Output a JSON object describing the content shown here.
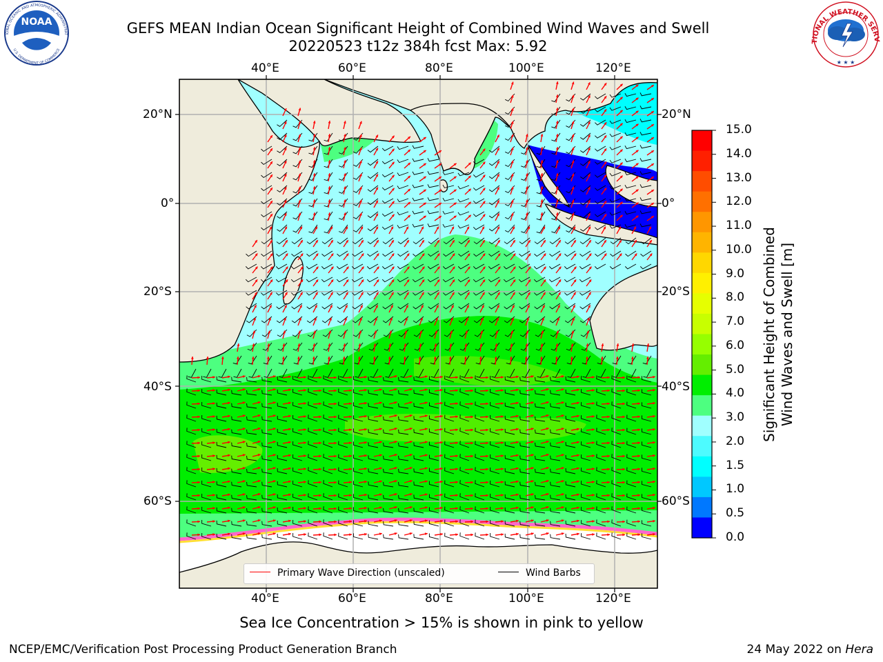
{
  "title": {
    "line1": "GEFS MEAN Indian Ocean Significant Height of Combined Wind Waves and Swell",
    "line2": "20220523 t12z 384h fcst   Max: 5.92"
  },
  "logos": {
    "noaa": "NOAA",
    "noaa_ring": "NATIONAL OCEANIC AND ATMOSPHERIC ADMINISTRATION",
    "noaa_ring_bottom": "U.S. DEPARTMENT OF COMMERCE",
    "nws_ring": "NATIONAL WEATHER SERVICE"
  },
  "map": {
    "lon_labels": [
      "40°E",
      "60°E",
      "80°E",
      "100°E",
      "120°E"
    ],
    "lat_labels": [
      "20°N",
      "0°",
      "20°S",
      "40°S",
      "60°S"
    ],
    "colors": {
      "land": "#efecdc",
      "ice": "#ffffff",
      "grid": "#b0b0b0",
      "wave_arrow": "#ff0000",
      "wind_barb": "#000000"
    }
  },
  "legend": {
    "primary_wave": "Primary Wave Direction (unscaled)",
    "wind_barbs": "Wind Barbs"
  },
  "colorbar": {
    "title_line1": "Significant Height of Combined",
    "title_line2": "Wind Waves and Swell [m]",
    "ticks": [
      "15.0",
      "14.0",
      "13.0",
      "12.0",
      "11.0",
      "10.0",
      "9.0",
      "8.0",
      "7.0",
      "6.0",
      "5.0",
      "4.0",
      "3.0",
      "2.0",
      "1.5",
      "1.0",
      "0.5",
      "0.0"
    ],
    "colors_top_to_bottom": [
      "#ff0000",
      "#ff2000",
      "#ff4d00",
      "#ff7000",
      "#ff9600",
      "#ffb400",
      "#ffd700",
      "#fff000",
      "#e6ff00",
      "#c8ff00",
      "#96ff00",
      "#64ee00",
      "#00ee00",
      "#4dff80",
      "#a0ffff",
      "#4dfbff",
      "#00ffff",
      "#00c8ff",
      "#0078ff",
      "#0000ff"
    ]
  },
  "note": "Sea Ice Concentration > 15% is shown in pink to yellow",
  "footer": {
    "left": "NCEP/EMC/Verification Post Processing Product Generation Branch",
    "right_date": "24 May 2022 on ",
    "right_host": "Hera"
  }
}
